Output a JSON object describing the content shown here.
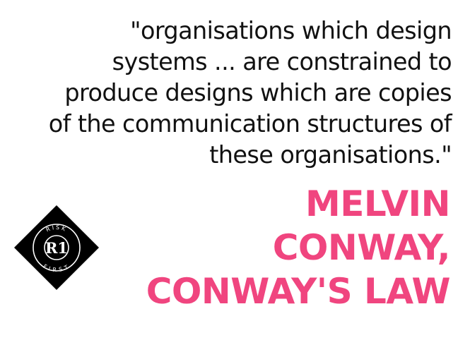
{
  "quote": {
    "lines": [
      "\"organisations which design",
      "systems ... are constrained to",
      "produce designs which are copies",
      "of the communication structures of",
      "these organisations.\""
    ]
  },
  "attribution": {
    "lines": [
      "MELVIN",
      "CONWAY,",
      "CONWAY'S LAW"
    ]
  },
  "logo": {
    "top_text": "RISK",
    "bottom_text": "FIRST",
    "mark": "R1"
  },
  "colors": {
    "background": "#ffffff",
    "quote_text": "#111111",
    "attribution_text": "#f0457f",
    "logo_fill": "#000000",
    "logo_stroke": "#ffffff"
  }
}
